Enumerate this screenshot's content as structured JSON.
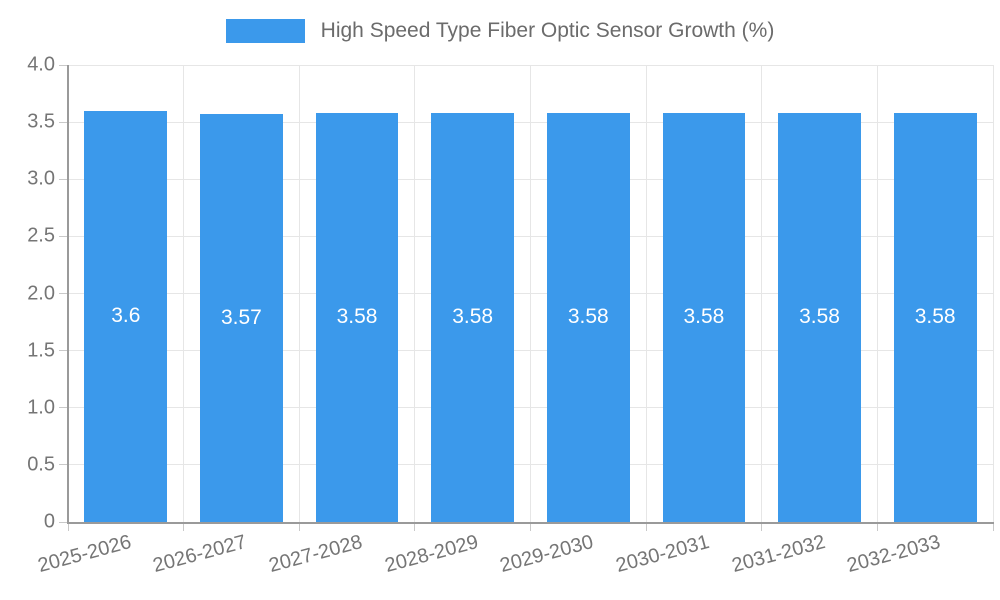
{
  "legend": {
    "label": "High Speed Type Fiber Optic Sensor Growth (%)",
    "swatch_color": "#3B99EB"
  },
  "chart_data": {
    "type": "bar",
    "title": "High Speed Type Fiber Optic Sensor Growth (%)",
    "categories": [
      "2025-2026",
      "2026-2027",
      "2027-2028",
      "2028-2029",
      "2029-2030",
      "2030-2031",
      "2031-2032",
      "2032-2033"
    ],
    "values": [
      3.6,
      3.57,
      3.58,
      3.58,
      3.58,
      3.58,
      3.58,
      3.58
    ],
    "value_labels": [
      "3.6",
      "3.57",
      "3.58",
      "3.58",
      "3.58",
      "3.58",
      "3.58",
      "3.58"
    ],
    "xlabel": "",
    "ylabel": "",
    "ylim": [
      0,
      4.0
    ],
    "yticks": [
      "0",
      "0.5",
      "1.0",
      "1.5",
      "2.0",
      "2.5",
      "3.0",
      "3.5",
      "4.0"
    ],
    "grid": true,
    "legend_position": "top",
    "bar_color": "#3B99EB",
    "bar_label_color": "#ffffff",
    "axis_text_color": "#757575"
  }
}
